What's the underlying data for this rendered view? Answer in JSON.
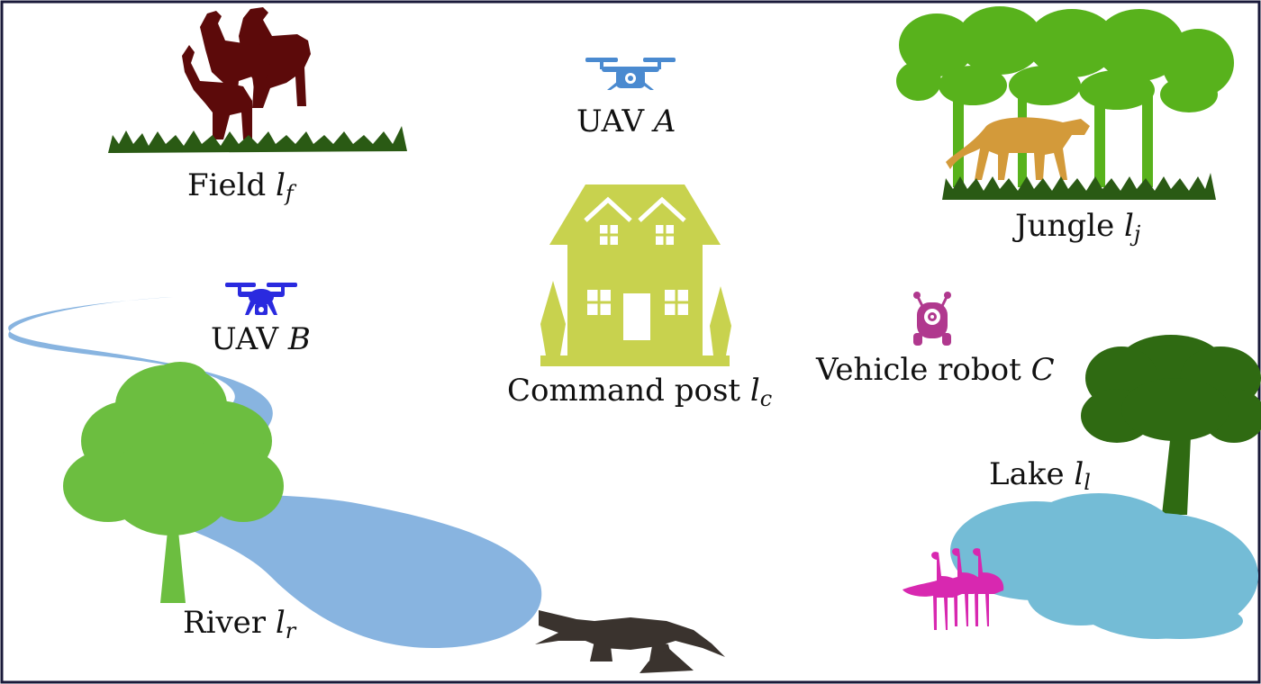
{
  "colors": {
    "frame": "#1a1a3a",
    "deer": "#5c0a0a",
    "grass": "#2a5a14",
    "jungle_trees": "#58b21c",
    "cheetah": "#d39a3a",
    "uav_a": "#4a8ad0",
    "uav_b": "#2a2adf",
    "house": "#c8d24e",
    "robot": "#b0388e",
    "river": "#88b4e0",
    "river_tree": "#6cbe40",
    "lake": "#74bcd6",
    "lake_tree": "#2f6a12",
    "flamingo": "#d828b0",
    "crocodile": "#3a332e"
  },
  "icons": [
    "deer-icon",
    "uav-a-icon",
    "jungle-icon",
    "cheetah-icon",
    "house-icon",
    "uav-b-icon",
    "robot-icon",
    "river-icon",
    "tree-icon",
    "lake-icon",
    "lake-tree-icon",
    "flamingo-icon",
    "crocodile-icon"
  ],
  "labels": {
    "field": {
      "text": "Field ",
      "var": "l",
      "sub": "f"
    },
    "uav_a": {
      "text": "UAV ",
      "var": "A"
    },
    "jungle": {
      "text": "Jungle ",
      "var": "l",
      "sub": "j"
    },
    "uav_b": {
      "text": "UAV ",
      "var": "B"
    },
    "command_post": {
      "text": "Command post ",
      "var": "l",
      "sub": "c"
    },
    "vehicle_robot": {
      "text": "Vehicle robot ",
      "var": "C"
    },
    "lake": {
      "text": "Lake ",
      "var": "l",
      "sub": "l"
    },
    "river": {
      "text": "River ",
      "var": "l",
      "sub": "r"
    }
  }
}
